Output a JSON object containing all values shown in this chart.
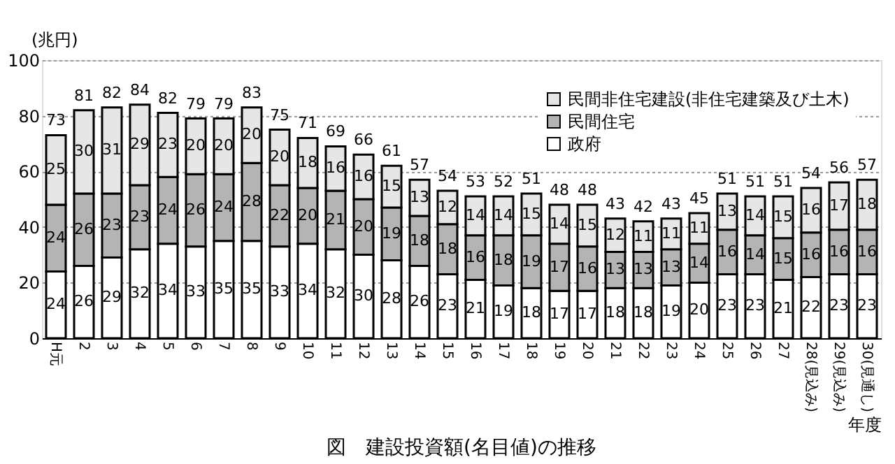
{
  "chart_data": {
    "type": "bar",
    "stacked": true,
    "title": "図　建設投資額(名目値)の推移",
    "xlabel": "年度",
    "ylabel": "(兆円)",
    "categories": [
      "H元",
      "2",
      "3",
      "4",
      "5",
      "6",
      "7",
      "8",
      "9",
      "10",
      "11",
      "12",
      "13",
      "14",
      "15",
      "16",
      "17",
      "18",
      "19",
      "20",
      "21",
      "22",
      "23",
      "24",
      "25",
      "26",
      "27",
      "28(見込み)",
      "29(見込み)",
      "30(見通し)"
    ],
    "series": [
      {
        "name": "政府",
        "color": "#ffffff",
        "values": [
          24,
          26,
          29,
          32,
          34,
          33,
          35,
          35,
          33,
          34,
          32,
          30,
          28,
          26,
          23,
          21,
          19,
          18,
          17,
          17,
          18,
          18,
          19,
          20,
          23,
          23,
          21,
          22,
          23,
          23
        ]
      },
      {
        "name": "民間住宅",
        "color": "#b4b4b4",
        "values": [
          24,
          26,
          23,
          23,
          24,
          26,
          24,
          28,
          22,
          20,
          21,
          20,
          19,
          18,
          18,
          16,
          18,
          19,
          17,
          16,
          13,
          13,
          13,
          14,
          16,
          14,
          15,
          16,
          16,
          16
        ]
      },
      {
        "name": "民間非住宅建設(非住宅建築及び土木)",
        "color": "#e6e6e6",
        "values": [
          25,
          30,
          31,
          29,
          23,
          20,
          20,
          20,
          20,
          18,
          16,
          16,
          15,
          13,
          12,
          14,
          14,
          15,
          14,
          15,
          12,
          11,
          11,
          11,
          13,
          14,
          15,
          16,
          17,
          18
        ]
      }
    ],
    "totals": [
      "73",
      "81",
      "82",
      "84",
      "82",
      "79",
      "79",
      "83",
      "75",
      "71",
      "69",
      "66",
      "61",
      "57",
      "54",
      "53",
      "52",
      "51",
      "48",
      "48",
      "43",
      "42",
      "43",
      "45",
      "51",
      "51",
      "51",
      "54",
      "56",
      "57"
    ],
    "data_labels": true,
    "ylim": [
      0,
      100
    ],
    "yticks": [
      0,
      20,
      40,
      60,
      80,
      100
    ],
    "grid": "y",
    "legend": "top right"
  }
}
